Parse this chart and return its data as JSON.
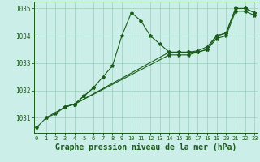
{
  "background_color": "#cceee8",
  "grid_color": "#99ccbb",
  "line_color": "#1a5c1a",
  "title": "Graphe pression niveau de la mer (hPa)",
  "title_fontsize": 7.0,
  "xlim": [
    -0.3,
    23.3
  ],
  "ylim": [
    1030.45,
    1035.25
  ],
  "yticks": [
    1031,
    1032,
    1033,
    1034,
    1035
  ],
  "xticks": [
    0,
    1,
    2,
    3,
    4,
    5,
    6,
    7,
    8,
    9,
    10,
    11,
    12,
    13,
    14,
    15,
    16,
    17,
    18,
    19,
    20,
    21,
    22,
    23
  ],
  "s1_x": [
    0,
    1,
    3,
    4,
    5,
    6,
    7,
    8,
    9,
    10,
    11,
    12,
    13,
    14,
    15,
    16,
    17,
    18,
    19,
    20,
    21,
    22,
    23
  ],
  "s1_y": [
    1030.65,
    1031.0,
    1031.4,
    1031.5,
    1031.8,
    1032.1,
    1032.5,
    1032.9,
    1034.0,
    1034.85,
    1034.55,
    1034.0,
    1033.7,
    1033.4,
    1033.4,
    1033.4,
    1033.4,
    1033.5,
    1034.0,
    1034.1,
    1035.0,
    1035.0,
    1034.85
  ],
  "s2_x": [
    1,
    2,
    3,
    4,
    5,
    6
  ],
  "s2_y": [
    1031.0,
    1031.15,
    1031.4,
    1031.5,
    1031.8,
    1032.1
  ],
  "s3_x": [
    3,
    4,
    14,
    15,
    16,
    17,
    18,
    19,
    20,
    21,
    22,
    23
  ],
  "s3_y": [
    1031.4,
    1031.5,
    1033.4,
    1033.4,
    1033.4,
    1033.45,
    1033.6,
    1034.0,
    1034.1,
    1035.0,
    1035.0,
    1034.85
  ],
  "s4_x": [
    3,
    4,
    14,
    15,
    16,
    17,
    18,
    19,
    20,
    21,
    22,
    23
  ],
  "s4_y": [
    1031.4,
    1031.5,
    1033.3,
    1033.3,
    1033.3,
    1033.4,
    1033.5,
    1033.9,
    1034.0,
    1034.9,
    1034.9,
    1034.75
  ]
}
